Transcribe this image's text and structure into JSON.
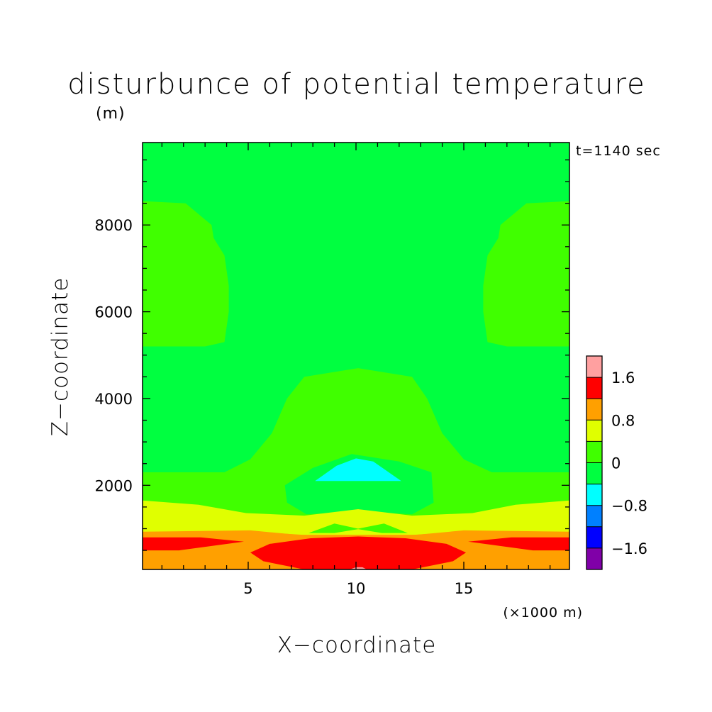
{
  "chart_data": {
    "type": "heatmap",
    "title": "disturbunce of potential temperature",
    "subtitle": "(m)",
    "annotation": "t=1140 sec",
    "xlabel": "X−coordinate",
    "ylabel": "Z−coordinate",
    "x_unit_note": "(×1000 m)",
    "xlim": [
      0.1,
      19.9
    ],
    "ylim": [
      60,
      9900
    ],
    "x_ticks": [
      {
        "value": 5,
        "label": "5"
      },
      {
        "value": 10,
        "label": "10"
      },
      {
        "value": 15,
        "label": "15"
      }
    ],
    "y_ticks": [
      {
        "value": 2000,
        "label": "2000"
      },
      {
        "value": 4000,
        "label": "4000"
      },
      {
        "value": 6000,
        "label": "6000"
      },
      {
        "value": 8000,
        "label": "8000"
      }
    ],
    "colorbar": {
      "levels": [
        -2.0,
        -1.6,
        -1.2,
        -0.8,
        -0.4,
        0,
        0.4,
        0.8,
        1.2,
        1.6,
        2.0
      ],
      "colors": [
        "#8000a8",
        "#0000ff",
        "#0080ff",
        "#00ffff",
        "#00ff40",
        "#40ff00",
        "#e0ff00",
        "#ffa000",
        "#ff0000",
        "#ffa0a0"
      ],
      "tick_labels": [
        {
          "value": -1.6,
          "label": "−1.6"
        },
        {
          "value": -0.8,
          "label": "−0.8"
        },
        {
          "value": 0,
          "label": "0"
        },
        {
          "value": 0.8,
          "label": "0.8"
        },
        {
          "value": 1.6,
          "label": "1.6"
        }
      ]
    },
    "background_class": "-0.4 to 0",
    "regions": [
      {
        "class": "0 to 0.4",
        "points": [
          [
            0.1,
            5200
          ],
          [
            3.0,
            5200
          ],
          [
            3.9,
            5300
          ],
          [
            4.1,
            6000
          ],
          [
            4.1,
            6600
          ],
          [
            3.9,
            7300
          ],
          [
            3.4,
            7700
          ],
          [
            3.3,
            8000
          ],
          [
            2.1,
            8500
          ],
          [
            0.1,
            8550
          ]
        ]
      },
      {
        "class": "0 to 0.4",
        "points": [
          [
            19.9,
            5200
          ],
          [
            17.0,
            5200
          ],
          [
            16.1,
            5300
          ],
          [
            15.9,
            6000
          ],
          [
            15.9,
            6600
          ],
          [
            16.1,
            7300
          ],
          [
            16.6,
            7700
          ],
          [
            16.7,
            8000
          ],
          [
            17.9,
            8500
          ],
          [
            19.9,
            8550
          ]
        ]
      },
      {
        "class": "0 to 0.4",
        "points": [
          [
            0.1,
            60
          ],
          [
            19.9,
            60
          ],
          [
            19.9,
            2300
          ],
          [
            16.3,
            2300
          ],
          [
            15.0,
            2600
          ],
          [
            14.0,
            3200
          ],
          [
            13.3,
            4000
          ],
          [
            12.6,
            4500
          ],
          [
            10.1,
            4700
          ],
          [
            7.6,
            4500
          ],
          [
            6.8,
            4000
          ],
          [
            6.1,
            3200
          ],
          [
            5.1,
            2600
          ],
          [
            3.9,
            2300
          ],
          [
            0.1,
            2300
          ]
        ]
      },
      {
        "class": "-0.4 to 0",
        "points": [
          [
            6.7,
            2000
          ],
          [
            8.0,
            2400
          ],
          [
            9.8,
            2720
          ],
          [
            12.0,
            2550
          ],
          [
            13.5,
            2300
          ],
          [
            13.6,
            1600
          ],
          [
            12.6,
            1330
          ],
          [
            10.1,
            1400
          ],
          [
            7.7,
            1330
          ],
          [
            6.8,
            1600
          ]
        ]
      },
      {
        "class": "-0.8 to -0.4",
        "points": [
          [
            8.1,
            2100
          ],
          [
            9.1,
            2450
          ],
          [
            10.0,
            2620
          ],
          [
            10.8,
            2550
          ],
          [
            12.1,
            2100
          ]
        ]
      },
      {
        "class": "0.4 to 0.8",
        "points": [
          [
            0.1,
            60
          ],
          [
            19.9,
            60
          ],
          [
            19.9,
            1650
          ],
          [
            17.4,
            1550
          ],
          [
            15.4,
            1360
          ],
          [
            12.6,
            1300
          ],
          [
            10.1,
            1450
          ],
          [
            7.6,
            1300
          ],
          [
            4.9,
            1360
          ],
          [
            2.7,
            1550
          ],
          [
            0.1,
            1650
          ]
        ]
      },
      {
        "class": "0 to 0.4",
        "points": [
          [
            7.8,
            900
          ],
          [
            9.0,
            1120
          ],
          [
            10.1,
            1000
          ],
          [
            11.3,
            1120
          ],
          [
            12.4,
            900
          ],
          [
            11.2,
            900
          ],
          [
            10.1,
            990
          ],
          [
            9.0,
            900
          ]
        ]
      },
      {
        "class": "0.8 to 1.2",
        "points": [
          [
            0.1,
            60
          ],
          [
            19.9,
            60
          ],
          [
            19.9,
            350
          ],
          [
            18.0,
            500
          ],
          [
            17.0,
            720
          ],
          [
            15.9,
            880
          ],
          [
            14.0,
            900
          ],
          [
            10.1,
            780
          ],
          [
            6.2,
            900
          ],
          [
            4.3,
            880
          ],
          [
            3.1,
            720
          ],
          [
            2.1,
            500
          ],
          [
            0.1,
            350
          ]
        ]
      },
      {
        "class": "0.8 to 1.2",
        "points": [
          [
            0.1,
            300
          ],
          [
            19.9,
            300
          ],
          [
            19.9,
            930
          ],
          [
            15.0,
            960
          ],
          [
            12.8,
            860
          ],
          [
            7.3,
            860
          ],
          [
            5.1,
            960
          ],
          [
            0.1,
            930
          ]
        ]
      },
      {
        "class": "1.2 to 1.6",
        "points": [
          [
            0.1,
            500
          ],
          [
            1.8,
            500
          ],
          [
            4.8,
            700
          ],
          [
            2.8,
            800
          ],
          [
            0.1,
            800
          ]
        ]
      },
      {
        "class": "1.2 to 1.6",
        "points": [
          [
            19.9,
            500
          ],
          [
            18.2,
            500
          ],
          [
            15.2,
            700
          ],
          [
            17.2,
            800
          ],
          [
            19.9,
            800
          ]
        ]
      },
      {
        "class": "1.2 to 1.6",
        "points": [
          [
            7.6,
            60
          ],
          [
            12.6,
            60
          ],
          [
            14.5,
            250
          ],
          [
            15.1,
            450
          ],
          [
            14.2,
            650
          ],
          [
            12.3,
            780
          ],
          [
            10.1,
            820
          ],
          [
            7.9,
            780
          ],
          [
            6.0,
            650
          ],
          [
            5.1,
            450
          ],
          [
            5.7,
            250
          ]
        ]
      },
      {
        "class": "1.6 to 2.0",
        "points": [
          [
            9.7,
            60
          ],
          [
            10.5,
            60
          ],
          [
            10.3,
            110
          ],
          [
            10.0,
            110
          ]
        ]
      }
    ]
  }
}
